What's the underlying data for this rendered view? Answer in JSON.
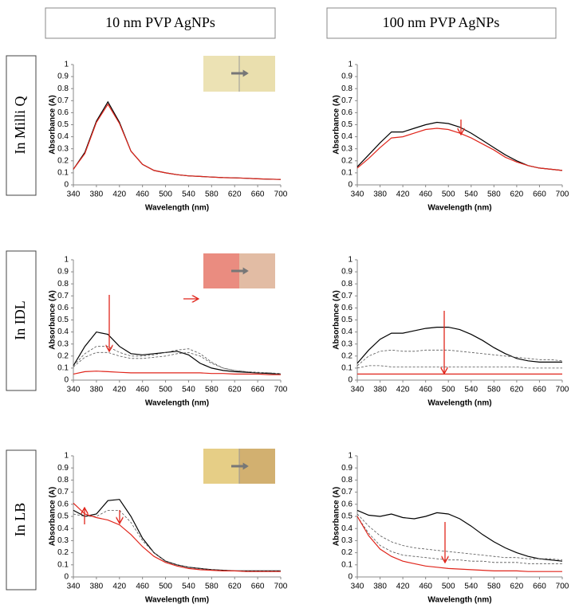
{
  "column_headers": [
    "10 nm PVP AgNPs",
    "100 nm PVP AgNPs"
  ],
  "row_labels": [
    "In Milli Q",
    "In IDL",
    "In LB"
  ],
  "chart_data": [
    {
      "type": "line",
      "xlabel": "Wavelength (nm)",
      "ylabel": "Absorbance (A)",
      "x": [
        340,
        360,
        380,
        400,
        420,
        440,
        460,
        480,
        500,
        520,
        540,
        560,
        580,
        600,
        620,
        640,
        660,
        680,
        700
      ],
      "xlim": [
        340,
        700
      ],
      "xticks": [
        340,
        380,
        420,
        460,
        500,
        540,
        580,
        620,
        660,
        700
      ],
      "ylim": [
        0,
        1
      ],
      "yticks": [
        0,
        0.1,
        0.2,
        0.3,
        0.4,
        0.5,
        0.6,
        0.7,
        0.8,
        0.9,
        1
      ],
      "series": [
        {
          "color": "#000000",
          "dashed": false,
          "values": [
            0.13,
            0.27,
            0.53,
            0.69,
            0.52,
            0.28,
            0.17,
            0.12,
            0.1,
            0.085,
            0.075,
            0.07,
            0.065,
            0.06,
            0.058,
            0.055,
            0.05,
            0.048,
            0.045
          ]
        },
        {
          "color": "#e0251b",
          "dashed": false,
          "values": [
            0.13,
            0.26,
            0.52,
            0.67,
            0.51,
            0.28,
            0.17,
            0.12,
            0.1,
            0.085,
            0.075,
            0.07,
            0.065,
            0.06,
            0.058,
            0.055,
            0.05,
            0.048,
            0.045
          ]
        }
      ]
    },
    {
      "type": "line",
      "xlabel": "Wavelength (nm)",
      "ylabel": "Absorbance (A)",
      "x": [
        340,
        360,
        380,
        400,
        420,
        440,
        460,
        480,
        500,
        520,
        540,
        560,
        580,
        600,
        620,
        640,
        660,
        680,
        700
      ],
      "xlim": [
        340,
        700
      ],
      "xticks": [
        340,
        380,
        420,
        460,
        500,
        540,
        580,
        620,
        660,
        700
      ],
      "ylim": [
        0,
        1
      ],
      "yticks": [
        0,
        0.1,
        0.2,
        0.3,
        0.4,
        0.5,
        0.6,
        0.7,
        0.8,
        0.9,
        1
      ],
      "series": [
        {
          "color": "#000000",
          "dashed": false,
          "values": [
            0.15,
            0.25,
            0.35,
            0.44,
            0.44,
            0.47,
            0.5,
            0.52,
            0.51,
            0.48,
            0.43,
            0.37,
            0.31,
            0.25,
            0.2,
            0.16,
            0.14,
            0.13,
            0.12
          ]
        },
        {
          "color": "#e0251b",
          "dashed": false,
          "values": [
            0.14,
            0.22,
            0.31,
            0.39,
            0.4,
            0.43,
            0.46,
            0.47,
            0.46,
            0.43,
            0.39,
            0.34,
            0.29,
            0.23,
            0.19,
            0.16,
            0.14,
            0.13,
            0.12
          ]
        }
      ]
    },
    {
      "type": "line",
      "xlabel": "Wavelength (nm)",
      "ylabel": "Absorbance (A)",
      "x": [
        340,
        360,
        380,
        400,
        420,
        440,
        460,
        480,
        500,
        520,
        540,
        560,
        580,
        600,
        620,
        640,
        660,
        680,
        700
      ],
      "xlim": [
        340,
        700
      ],
      "xticks": [
        340,
        380,
        420,
        460,
        500,
        540,
        580,
        620,
        660,
        700
      ],
      "ylim": [
        0,
        1
      ],
      "yticks": [
        0,
        0.1,
        0.2,
        0.3,
        0.4,
        0.5,
        0.6,
        0.7,
        0.8,
        0.9,
        1
      ],
      "series": [
        {
          "color": "#000000",
          "dashed": false,
          "values": [
            0.12,
            0.28,
            0.4,
            0.38,
            0.28,
            0.22,
            0.21,
            0.22,
            0.23,
            0.24,
            0.21,
            0.14,
            0.1,
            0.08,
            0.07,
            0.065,
            0.06,
            0.055,
            0.05
          ]
        },
        {
          "color": "#555555",
          "dashed": true,
          "values": [
            0.12,
            0.22,
            0.28,
            0.28,
            0.23,
            0.2,
            0.2,
            0.21,
            0.23,
            0.25,
            0.26,
            0.22,
            0.15,
            0.1,
            0.08,
            0.07,
            0.065,
            0.06,
            0.055
          ]
        },
        {
          "color": "#555555",
          "dashed": true,
          "values": [
            0.11,
            0.19,
            0.23,
            0.23,
            0.2,
            0.18,
            0.18,
            0.19,
            0.2,
            0.22,
            0.23,
            0.2,
            0.14,
            0.1,
            0.08,
            0.07,
            0.06,
            0.06,
            0.05
          ]
        },
        {
          "color": "#e0251b",
          "dashed": false,
          "values": [
            0.05,
            0.07,
            0.075,
            0.07,
            0.065,
            0.06,
            0.06,
            0.06,
            0.06,
            0.06,
            0.06,
            0.06,
            0.055,
            0.055,
            0.05,
            0.05,
            0.05,
            0.045,
            0.045
          ]
        }
      ]
    },
    {
      "type": "line",
      "xlabel": "Wavelength (nm)",
      "ylabel": "Absorbance (A)",
      "x": [
        340,
        360,
        380,
        400,
        420,
        440,
        460,
        480,
        500,
        520,
        540,
        560,
        580,
        600,
        620,
        640,
        660,
        680,
        700
      ],
      "xlim": [
        340,
        700
      ],
      "xticks": [
        340,
        380,
        420,
        460,
        500,
        540,
        580,
        620,
        660,
        700
      ],
      "ylim": [
        0,
        1
      ],
      "yticks": [
        0,
        0.1,
        0.2,
        0.3,
        0.4,
        0.5,
        0.6,
        0.7,
        0.8,
        0.9,
        1
      ],
      "series": [
        {
          "color": "#000000",
          "dashed": false,
          "values": [
            0.14,
            0.25,
            0.34,
            0.39,
            0.39,
            0.41,
            0.43,
            0.44,
            0.44,
            0.42,
            0.38,
            0.33,
            0.27,
            0.22,
            0.18,
            0.16,
            0.15,
            0.15,
            0.15
          ]
        },
        {
          "color": "#555555",
          "dashed": true,
          "values": [
            0.12,
            0.2,
            0.24,
            0.25,
            0.24,
            0.24,
            0.25,
            0.25,
            0.25,
            0.24,
            0.23,
            0.22,
            0.21,
            0.2,
            0.19,
            0.18,
            0.17,
            0.17,
            0.16
          ]
        },
        {
          "color": "#555555",
          "dashed": true,
          "values": [
            0.1,
            0.12,
            0.12,
            0.11,
            0.11,
            0.11,
            0.11,
            0.11,
            0.11,
            0.11,
            0.11,
            0.11,
            0.11,
            0.11,
            0.11,
            0.1,
            0.1,
            0.1,
            0.1
          ]
        },
        {
          "color": "#e0251b",
          "dashed": false,
          "values": [
            0.05,
            0.05,
            0.05,
            0.05,
            0.05,
            0.05,
            0.05,
            0.05,
            0.05,
            0.05,
            0.05,
            0.05,
            0.05,
            0.05,
            0.05,
            0.05,
            0.05,
            0.05,
            0.05
          ]
        }
      ]
    },
    {
      "type": "line",
      "xlabel": "Wavelength (nm)",
      "ylabel": "Absorbance (A)",
      "x": [
        340,
        360,
        380,
        400,
        420,
        440,
        460,
        480,
        500,
        520,
        540,
        560,
        580,
        600,
        620,
        640,
        660,
        680,
        700
      ],
      "xlim": [
        340,
        700
      ],
      "xticks": [
        340,
        380,
        420,
        460,
        500,
        540,
        580,
        620,
        660,
        700
      ],
      "ylim": [
        0,
        1
      ],
      "yticks": [
        0,
        0.1,
        0.2,
        0.3,
        0.4,
        0.5,
        0.6,
        0.7,
        0.8,
        0.9,
        1
      ],
      "series": [
        {
          "color": "#000000",
          "dashed": false,
          "values": [
            0.55,
            0.5,
            0.52,
            0.63,
            0.64,
            0.5,
            0.32,
            0.2,
            0.13,
            0.1,
            0.08,
            0.07,
            0.06,
            0.055,
            0.05,
            0.05,
            0.05,
            0.05,
            0.05
          ]
        },
        {
          "color": "#555555",
          "dashed": true,
          "values": [
            0.52,
            0.5,
            0.5,
            0.55,
            0.55,
            0.45,
            0.3,
            0.2,
            0.13,
            0.1,
            0.08,
            0.07,
            0.06,
            0.055,
            0.05,
            0.05,
            0.05,
            0.05,
            0.05
          ]
        },
        {
          "color": "#e0251b",
          "dashed": false,
          "values": [
            0.61,
            0.52,
            0.49,
            0.47,
            0.43,
            0.35,
            0.25,
            0.17,
            0.12,
            0.09,
            0.07,
            0.06,
            0.055,
            0.05,
            0.05,
            0.045,
            0.045,
            0.045,
            0.045
          ]
        }
      ]
    },
    {
      "type": "line",
      "xlabel": "Wavelength (nm)",
      "ylabel": "Absorbance (A)",
      "x": [
        340,
        360,
        380,
        400,
        420,
        440,
        460,
        480,
        500,
        520,
        540,
        560,
        580,
        600,
        620,
        640,
        660,
        680,
        700
      ],
      "xlim": [
        340,
        700
      ],
      "xticks": [
        340,
        380,
        420,
        460,
        500,
        540,
        580,
        620,
        660,
        700
      ],
      "ylim": [
        0,
        1
      ],
      "yticks": [
        0,
        0.1,
        0.2,
        0.3,
        0.4,
        0.5,
        0.6,
        0.7,
        0.8,
        0.9,
        1
      ],
      "series": [
        {
          "color": "#000000",
          "dashed": false,
          "values": [
            0.55,
            0.51,
            0.5,
            0.52,
            0.49,
            0.48,
            0.5,
            0.53,
            0.52,
            0.48,
            0.42,
            0.35,
            0.29,
            0.24,
            0.2,
            0.17,
            0.15,
            0.14,
            0.13
          ]
        },
        {
          "color": "#555555",
          "dashed": true,
          "values": [
            0.52,
            0.42,
            0.34,
            0.29,
            0.26,
            0.24,
            0.23,
            0.22,
            0.21,
            0.2,
            0.19,
            0.18,
            0.17,
            0.16,
            0.16,
            0.15,
            0.15,
            0.15,
            0.14
          ]
        },
        {
          "color": "#555555",
          "dashed": true,
          "values": [
            0.5,
            0.36,
            0.26,
            0.21,
            0.18,
            0.17,
            0.16,
            0.15,
            0.14,
            0.14,
            0.13,
            0.13,
            0.12,
            0.12,
            0.12,
            0.11,
            0.11,
            0.11,
            0.11
          ]
        },
        {
          "color": "#e0251b",
          "dashed": false,
          "values": [
            0.5,
            0.34,
            0.23,
            0.17,
            0.13,
            0.11,
            0.09,
            0.08,
            0.07,
            0.065,
            0.06,
            0.055,
            0.05,
            0.05,
            0.05,
            0.045,
            0.045,
            0.045,
            0.045
          ]
        }
      ]
    }
  ]
}
